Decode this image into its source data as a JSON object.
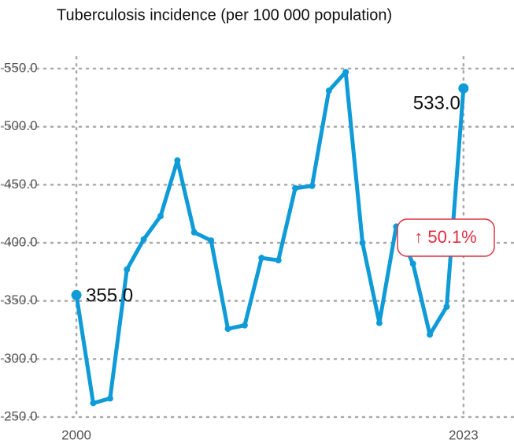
{
  "chart_data": {
    "type": "line",
    "title": "Tuberculosis incidence (per 100 000 population)",
    "x": [
      2000,
      2001,
      2002,
      2003,
      2004,
      2005,
      2006,
      2007,
      2008,
      2009,
      2010,
      2011,
      2012,
      2013,
      2014,
      2015,
      2016,
      2017,
      2018,
      2019,
      2020,
      2021,
      2022,
      2023
    ],
    "series": [
      {
        "color": "#0e9bd8",
        "values": [
          355,
          262,
          266,
          377,
          403,
          423,
          471,
          409,
          402,
          326,
          329,
          387,
          385,
          447,
          449,
          531,
          547,
          400,
          331,
          414,
          382,
          321,
          345,
          533
        ],
        "value_labels": {
          "0": "355.0",
          "23": "533.0"
        }
      }
    ],
    "annotation": "↑ 50.1%",
    "xlim": [
      1998.5,
      2026
    ],
    "xticks": [
      2000,
      2023
    ],
    "ylim": [
      250,
      560
    ],
    "yticks": [
      {
        "value": 250,
        "label": "250.0"
      },
      {
        "value": 300,
        "label": "300.0"
      },
      {
        "value": 350,
        "label": "350.0"
      },
      {
        "value": 400,
        "label": "400.0"
      },
      {
        "value": 450,
        "label": "450.0"
      },
      {
        "value": 500,
        "label": "500.0"
      },
      {
        "value": 550,
        "label": "550.0"
      }
    ],
    "grid": true
  }
}
